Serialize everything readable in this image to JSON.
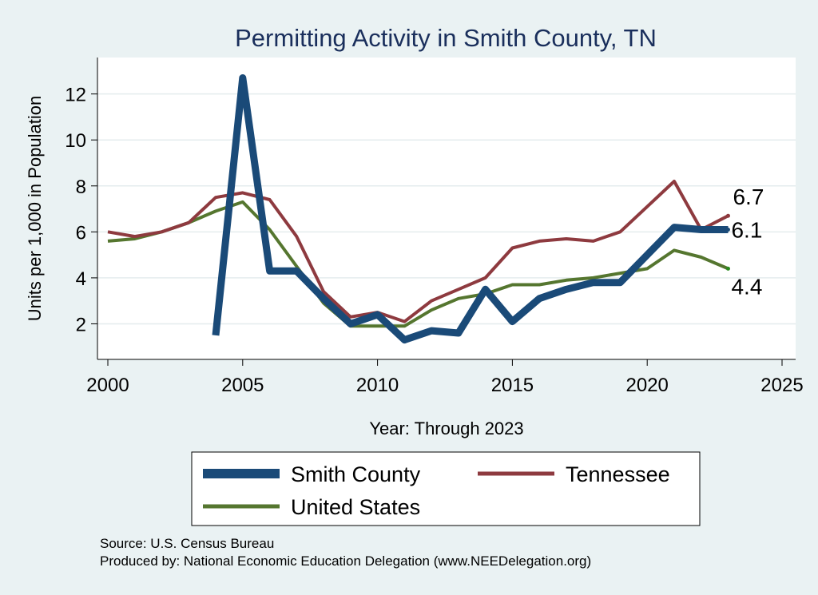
{
  "chart_data": {
    "type": "line",
    "title": "Permitting Activity in Smith County, TN",
    "xlabel": "Year: Through 2023",
    "ylabel": "Units per 1,000 in Population",
    "xlim": [
      2000,
      2025
    ],
    "ylim": [
      0.8,
      13.1
    ],
    "xticks": [
      2000,
      2005,
      2010,
      2015,
      2020,
      2025
    ],
    "xtick_labels": [
      "2000",
      "2005",
      "2010",
      "2015",
      "2020",
      "2025"
    ],
    "yticks": [
      2,
      4,
      6,
      8,
      10,
      12
    ],
    "ytick_labels": [
      "2",
      "4",
      "6",
      "8",
      "10",
      "12"
    ],
    "grid": true,
    "legend_position": "bottom",
    "series": [
      {
        "name": "Smith County",
        "color": "#1a4a78",
        "x": [
          2004,
          2005,
          2006,
          2007,
          2008,
          2009,
          2010,
          2011,
          2012,
          2013,
          2014,
          2015,
          2016,
          2017,
          2018,
          2019,
          2020,
          2021,
          2022,
          2023
        ],
        "values": [
          1.5,
          12.7,
          4.3,
          4.3,
          3.1,
          2.0,
          2.4,
          1.3,
          1.7,
          1.6,
          3.5,
          2.1,
          3.1,
          3.5,
          3.8,
          3.8,
          5.0,
          6.2,
          6.1,
          6.1
        ],
        "end_label": "6.1"
      },
      {
        "name": "Tennessee",
        "color": "#8e3a3f",
        "x": [
          2000,
          2001,
          2002,
          2003,
          2004,
          2005,
          2006,
          2007,
          2008,
          2009,
          2010,
          2011,
          2012,
          2013,
          2014,
          2015,
          2016,
          2017,
          2018,
          2019,
          2020,
          2021,
          2022,
          2023
        ],
        "values": [
          6.0,
          5.8,
          6.0,
          6.4,
          7.5,
          7.7,
          7.4,
          5.8,
          3.4,
          2.3,
          2.5,
          2.1,
          3.0,
          3.5,
          4.0,
          5.3,
          5.6,
          5.7,
          5.6,
          6.0,
          7.1,
          8.2,
          6.1,
          6.7
        ],
        "end_label": "6.7"
      },
      {
        "name": "United States",
        "color": "#55762f",
        "x": [
          2000,
          2001,
          2002,
          2003,
          2004,
          2005,
          2006,
          2007,
          2008,
          2009,
          2010,
          2011,
          2012,
          2013,
          2014,
          2015,
          2016,
          2017,
          2018,
          2019,
          2020,
          2021,
          2022,
          2023
        ],
        "values": [
          5.6,
          5.7,
          6.0,
          6.4,
          6.9,
          7.3,
          6.1,
          4.5,
          2.9,
          1.9,
          1.9,
          1.9,
          2.6,
          3.1,
          3.3,
          3.7,
          3.7,
          3.9,
          4.0,
          4.2,
          4.4,
          5.2,
          4.9,
          4.4
        ],
        "end_label": "4.4"
      }
    ],
    "legend": [
      "Smith County",
      "Tennessee",
      "United States"
    ],
    "notes": [
      "Source: U.S. Census Bureau",
      "Produced by: National Economic Education Delegation (www.NEEDelegation.org)"
    ]
  }
}
